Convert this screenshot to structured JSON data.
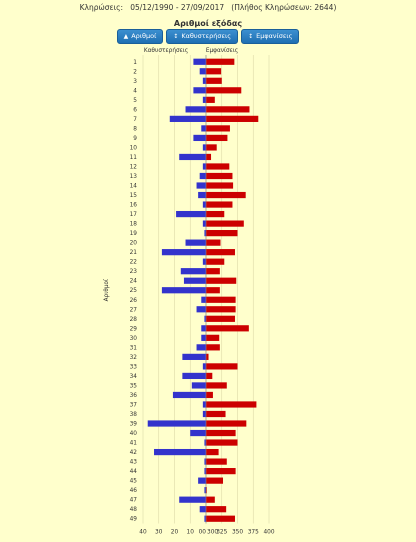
{
  "header": {
    "draws_label": "Κληρώσεις:",
    "date_range": "05/12/1990 - 27/09/2017",
    "count_text": "(Πλήθος Κληρώσεων: 2644)"
  },
  "title": "Αριθμοί εξόδας",
  "buttons": [
    {
      "label": "Αριθμοί",
      "icon": "sort-up-icon",
      "glyph": "▲"
    },
    {
      "label": "Καθυστερήσεις",
      "icon": "sort-icon",
      "glyph": "↕"
    },
    {
      "label": "Εμφανίσεις",
      "icon": "sort-icon",
      "glyph": "↕"
    }
  ],
  "colors": {
    "background": "#ffffcc",
    "delays": "#3333cc",
    "appearances": "#cc0000",
    "button": "#2a7fc0"
  },
  "chart_data": {
    "type": "bar",
    "orientation": "horizontal",
    "ylabel": "Αριθμοί",
    "series_labels": {
      "left": "Καθυστερήσεις",
      "right": "Εμφανίσεις"
    },
    "categories": [
      "1",
      "2",
      "3",
      "4",
      "5",
      "6",
      "7",
      "8",
      "9",
      "10",
      "11",
      "12",
      "13",
      "14",
      "15",
      "16",
      "17",
      "18",
      "19",
      "20",
      "21",
      "22",
      "23",
      "24",
      "25",
      "26",
      "27",
      "28",
      "29",
      "30",
      "31",
      "32",
      "33",
      "34",
      "35",
      "36",
      "37",
      "38",
      "39",
      "40",
      "41",
      "42",
      "43",
      "44",
      "45",
      "46",
      "47",
      "48",
      "49"
    ],
    "series": [
      {
        "name": "Καθυστερήσεις",
        "side": "left",
        "axis_ticks": [
          "40",
          "30",
          "20",
          "10",
          "00"
        ],
        "xlim": [
          0,
          40
        ],
        "values": [
          8,
          4,
          2,
          8,
          2,
          13,
          23,
          3,
          8,
          2,
          17,
          2,
          4,
          6,
          5,
          2,
          19,
          2,
          1,
          13,
          28,
          2,
          16,
          14,
          28,
          3,
          6,
          1,
          3,
          3,
          6,
          15,
          2,
          15,
          9,
          21,
          2,
          2,
          37,
          10,
          1,
          33,
          1,
          1,
          5,
          1,
          17,
          4,
          1
        ]
      },
      {
        "name": "Εμφανίσεις",
        "side": "right",
        "axis_ticks": [
          "300",
          "325",
          "350",
          "375",
          "400"
        ],
        "xlim": [
          300,
          400
        ],
        "values": [
          345,
          324,
          325,
          356,
          314,
          369,
          383,
          338,
          334,
          317,
          308,
          337,
          342,
          343,
          363,
          342,
          329,
          360,
          350,
          323,
          346,
          329,
          322,
          348,
          322,
          347,
          347,
          346,
          368,
          321,
          322,
          304,
          350,
          310,
          333,
          311,
          380,
          331,
          364,
          347,
          350,
          320,
          333,
          347,
          327,
          301,
          314,
          332,
          346
        ]
      }
    ]
  }
}
